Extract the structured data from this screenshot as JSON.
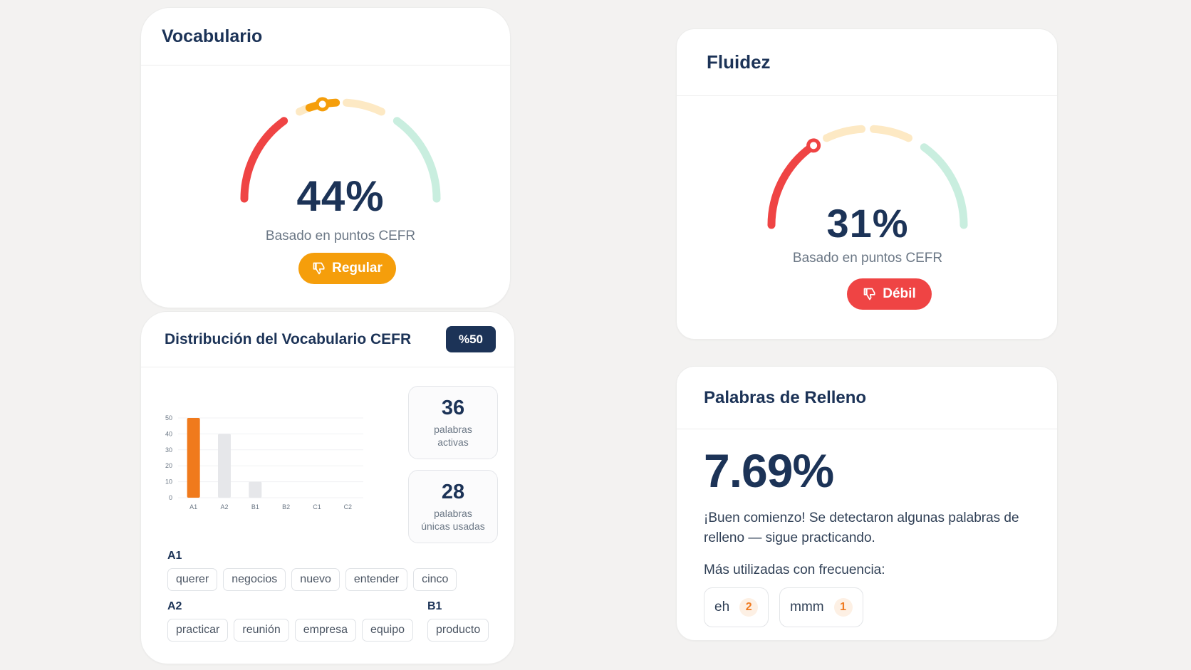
{
  "vocabulario": {
    "title": "Vocabulario",
    "percent": "44%",
    "percent_value": 0.44,
    "subtitle": "Basado en puntos CEFR",
    "rating": "Regular",
    "rating_color": "#f59e0b"
  },
  "fluidez": {
    "title": "Fluidez",
    "percent": "31%",
    "percent_value": 0.31,
    "subtitle": "Basado en puntos CEFR",
    "rating": "Débil",
    "rating_color": "#ef4444"
  },
  "gauge_colors": {
    "red": "#ef4444",
    "orange": "#f59e0b",
    "light_orange": "#fde9c4",
    "green": "#c9eedf"
  },
  "distribucion": {
    "title": "Distribución del Vocabulario CEFR",
    "badge": "%50",
    "chart_data": {
      "type": "bar",
      "categories": [
        "A1",
        "A2",
        "B1",
        "B2",
        "C1",
        "C2"
      ],
      "values": [
        50,
        40,
        10,
        0,
        0,
        0
      ],
      "yticks": [
        "0",
        "10",
        "20",
        "30",
        "40",
        "50"
      ],
      "ylim": [
        0,
        50
      ],
      "highlight_color": "#f07a1c",
      "bar_color": "#e6e7ea"
    },
    "stats": [
      {
        "value": "36",
        "label_line1": "palabras",
        "label_line2": "activas"
      },
      {
        "value": "28",
        "label_line1": "palabras",
        "label_line2": "únicas usadas"
      }
    ],
    "levels": {
      "a1": {
        "label": "A1",
        "words": [
          "querer",
          "negocios",
          "nuevo",
          "entender",
          "cinco"
        ]
      },
      "a2": {
        "label": "A2",
        "words": [
          "practicar",
          "reunión",
          "empresa",
          "equipo"
        ]
      },
      "b1": {
        "label": "B1",
        "words": [
          "producto"
        ]
      }
    }
  },
  "relleno": {
    "title": "Palabras de Relleno",
    "percent": "7.69%",
    "message": "¡Buen comienzo! Se detectaron algunas palabras de relleno — sigue practicando.",
    "frequent_label": "Más utilizadas con frecuencia:",
    "words": [
      {
        "word": "eh",
        "count": "2"
      },
      {
        "word": "mmm",
        "count": "1"
      }
    ]
  }
}
